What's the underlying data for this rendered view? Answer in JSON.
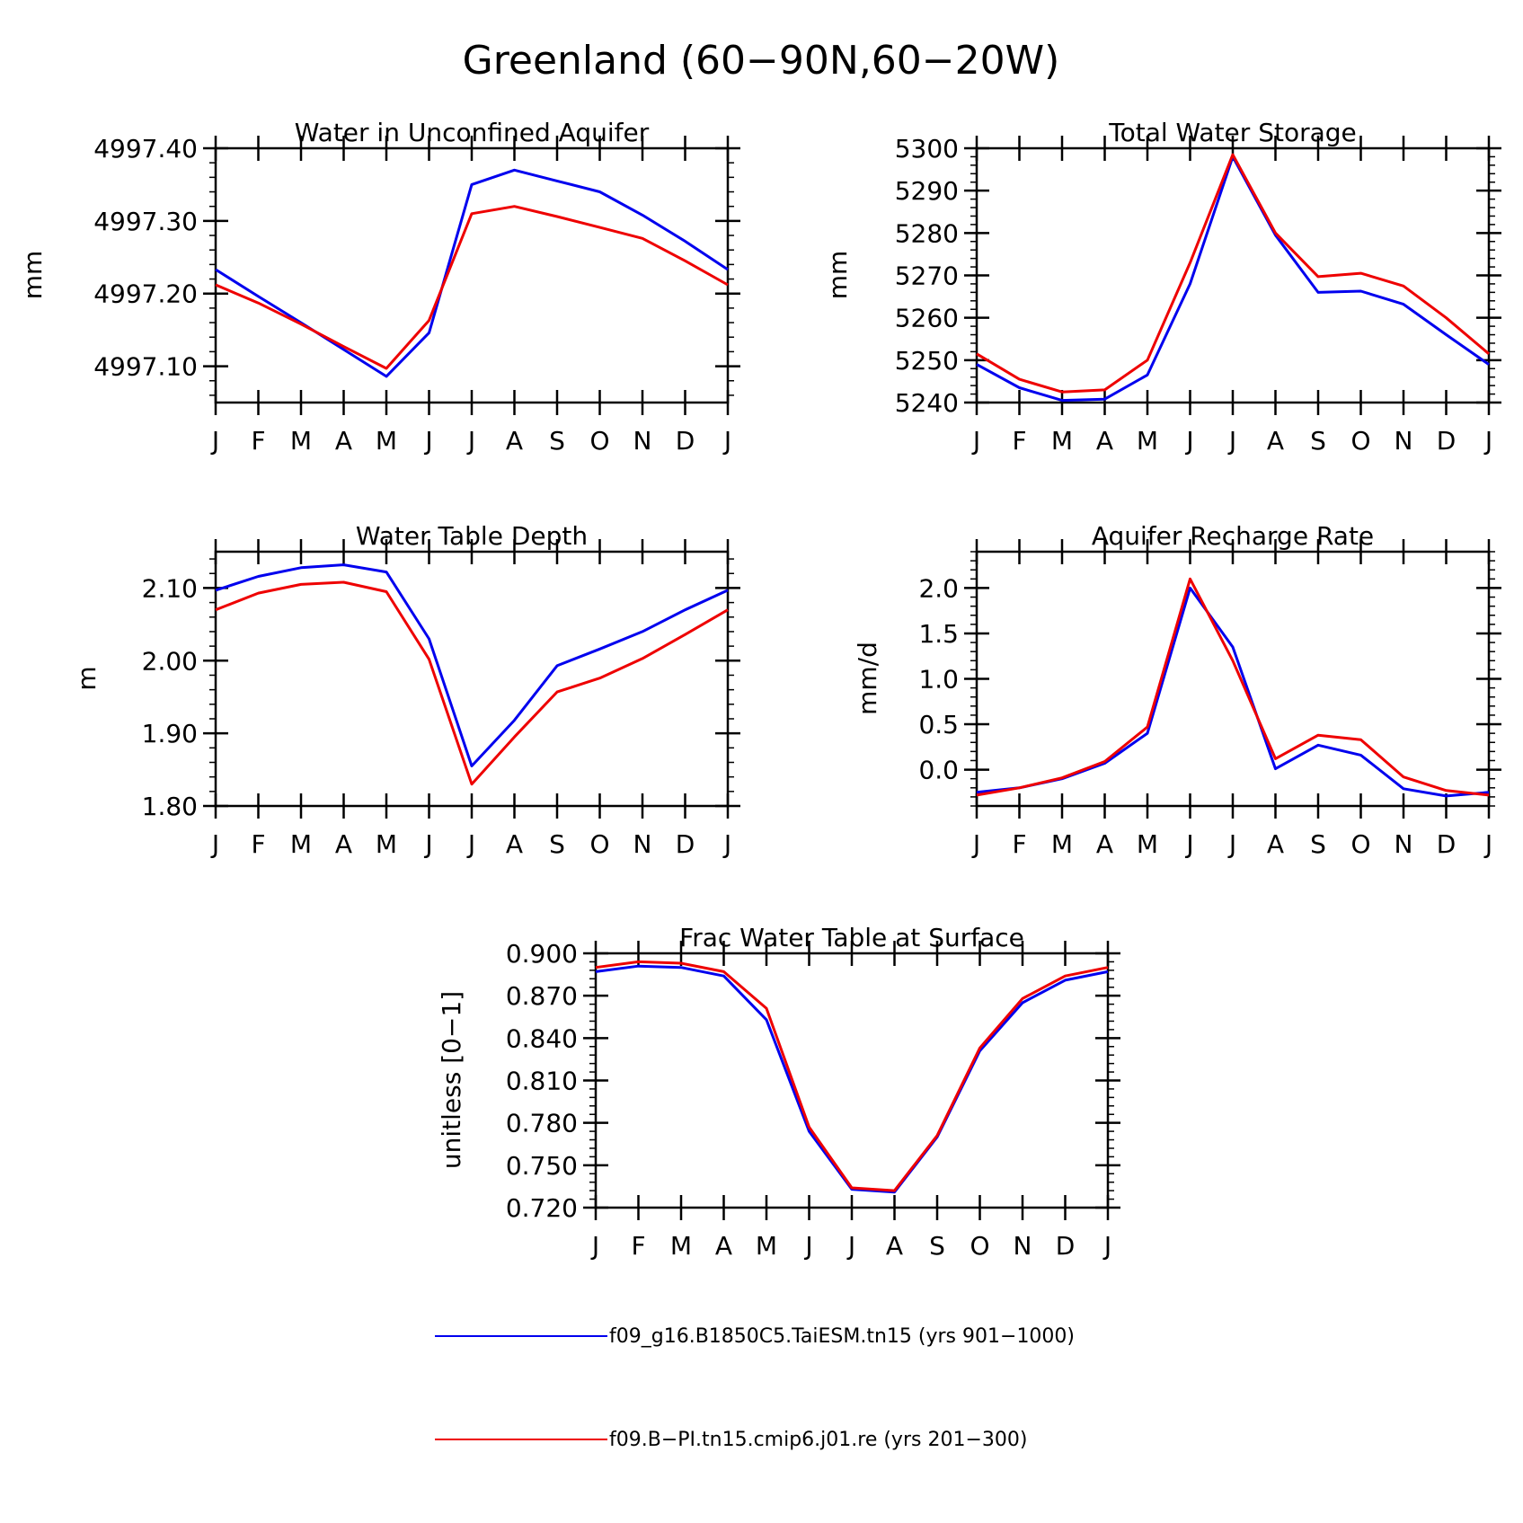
{
  "figure_title": "Greenland (60−90N,60−20W)",
  "months": [
    "J",
    "F",
    "M",
    "A",
    "M",
    "J",
    "J",
    "A",
    "S",
    "O",
    "N",
    "D",
    "J"
  ],
  "colors": {
    "blue": "#0000ee",
    "red": "#ee0000"
  },
  "legend": [
    {
      "label": "f09_g16.B1850C5.TaiESM.tn15 (yrs 901−1000)",
      "color": "#0000ee"
    },
    {
      "label": "f09.B−PI.tn15.cmip6.j01.re (yrs 201−300)",
      "color": "#ee0000"
    }
  ],
  "chart_data": [
    {
      "type": "line",
      "title": "Water in Unconfined Aquifer",
      "ylabel": "mm",
      "ylim": [
        4997.05,
        4997.4
      ],
      "yticks": [
        "4997.10",
        "4997.20",
        "4997.30",
        "4997.40"
      ],
      "series": [
        {
          "name": "f09_g16.B1850C5.TaiESM.tn15 (yrs 901−1000)",
          "color": "#0000ee",
          "values": [
            4997.233,
            4997.196,
            4997.16,
            4997.123,
            4997.086,
            4997.146,
            4997.35,
            4997.37,
            4997.355,
            4997.34,
            4997.308,
            4997.272,
            4997.233
          ]
        },
        {
          "name": "f09.B−PI.tn15.cmip6.j01.re (yrs 201−300)",
          "color": "#ee0000",
          "values": [
            4997.212,
            4997.187,
            4997.158,
            4997.127,
            4997.097,
            4997.163,
            4997.31,
            4997.32,
            4997.306,
            4997.291,
            4997.276,
            4997.245,
            4997.212
          ]
        }
      ]
    },
    {
      "type": "line",
      "title": "Total Water Storage",
      "ylabel": "mm",
      "ylim": [
        5240,
        5300
      ],
      "yticks": [
        "5240",
        "5250",
        "5260",
        "5270",
        "5280",
        "5290",
        "5300"
      ],
      "series": [
        {
          "name": "f09_g16.B1850C5.TaiESM.tn15 (yrs 901−1000)",
          "color": "#0000ee",
          "values": [
            5249.0,
            5243.5,
            5240.5,
            5240.8,
            5246.5,
            5268.0,
            5298.0,
            5279.5,
            5266.0,
            5266.3,
            5263.2,
            5256.0,
            5249.0
          ]
        },
        {
          "name": "f09.B−PI.tn15.cmip6.j01.re (yrs 201−300)",
          "color": "#ee0000",
          "values": [
            5251.5,
            5245.5,
            5242.5,
            5243.0,
            5250.0,
            5273.0,
            5298.5,
            5280.0,
            5269.7,
            5270.5,
            5267.5,
            5260.0,
            5251.5
          ]
        }
      ]
    },
    {
      "type": "line",
      "title": "Water Table Depth",
      "ylabel": "m",
      "ylim": [
        1.8,
        2.15
      ],
      "yticks": [
        "1.80",
        "1.90",
        "2.00",
        "2.10"
      ],
      "series": [
        {
          "name": "f09_g16.B1850C5.TaiESM.tn15 (yrs 901−1000)",
          "color": "#0000ee",
          "values": [
            2.097,
            2.116,
            2.128,
            2.132,
            2.122,
            2.03,
            1.855,
            1.918,
            1.993,
            2.016,
            2.04,
            2.07,
            2.097
          ]
        },
        {
          "name": "f09.B−PI.tn15.cmip6.j01.re (yrs 201−300)",
          "color": "#ee0000",
          "values": [
            2.07,
            2.093,
            2.105,
            2.108,
            2.095,
            2.002,
            1.83,
            1.895,
            1.957,
            1.976,
            2.003,
            2.036,
            2.07
          ]
        }
      ]
    },
    {
      "type": "line",
      "title": "Aquifer Recharge Rate",
      "ylabel": "mm/d",
      "ylim": [
        -0.4,
        2.4
      ],
      "yticks": [
        "0.0",
        "0.5",
        "1.0",
        "1.5",
        "2.0"
      ],
      "ytick_values": [
        0.0,
        0.5,
        1.0,
        1.5,
        2.0
      ],
      "series": [
        {
          "name": "f09_g16.B1850C5.TaiESM.tn15 (yrs 901−1000)",
          "color": "#0000ee",
          "values": [
            -0.25,
            -0.2,
            -0.1,
            0.07,
            0.4,
            2.0,
            1.35,
            0.01,
            0.27,
            0.16,
            -0.21,
            -0.29,
            -0.25
          ]
        },
        {
          "name": "f09.B−PI.tn15.cmip6.j01.re (yrs 201−300)",
          "color": "#ee0000",
          "values": [
            -0.28,
            -0.2,
            -0.09,
            0.09,
            0.47,
            2.1,
            1.2,
            0.12,
            0.38,
            0.33,
            -0.08,
            -0.23,
            -0.28
          ]
        }
      ]
    },
    {
      "type": "line",
      "title": "Frac Water Table at Surface",
      "ylabel": "unitless [0−1]",
      "ylim": [
        0.72,
        0.9
      ],
      "yticks": [
        "0.720",
        "0.750",
        "0.780",
        "0.810",
        "0.840",
        "0.870",
        "0.900"
      ],
      "series": [
        {
          "name": "f09_g16.B1850C5.TaiESM.tn15 (yrs 901−1000)",
          "color": "#0000ee",
          "values": [
            0.887,
            0.891,
            0.89,
            0.884,
            0.853,
            0.774,
            0.733,
            0.731,
            0.77,
            0.831,
            0.865,
            0.881,
            0.887
          ]
        },
        {
          "name": "f09.B−PI.tn15.cmip6.j01.re (yrs 201−300)",
          "color": "#ee0000",
          "values": [
            0.89,
            0.894,
            0.893,
            0.887,
            0.861,
            0.777,
            0.734,
            0.732,
            0.771,
            0.833,
            0.868,
            0.884,
            0.89
          ]
        }
      ]
    }
  ]
}
